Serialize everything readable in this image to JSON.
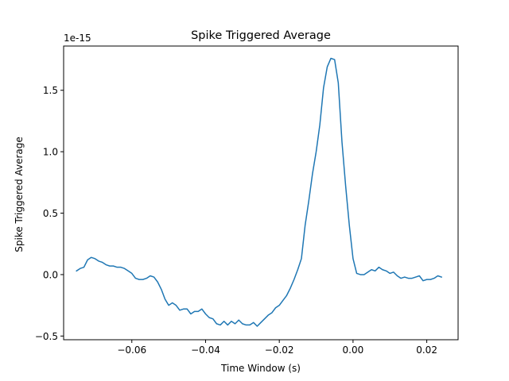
{
  "chart_data": {
    "type": "line",
    "title": "Spike Triggered Average",
    "xlabel": "Time Window (s)",
    "ylabel": "Spike Triggered Average",
    "y_offset_text": "1e-15",
    "y_scale_factor": 1e-15,
    "xlim": [
      -0.0785,
      0.0285
    ],
    "ylim": [
      -0.53,
      1.86
    ],
    "xticks": [
      -0.06,
      -0.04,
      -0.02,
      0.0,
      0.02
    ],
    "xtick_labels": [
      "−0.06",
      "−0.04",
      "−0.02",
      "0.00",
      "0.02"
    ],
    "yticks": [
      -0.5,
      0.0,
      0.5,
      1.0,
      1.5
    ],
    "ytick_labels": [
      "−0.5",
      "0.0",
      "0.5",
      "1.0",
      "1.5"
    ],
    "grid": false,
    "line_color": "#1f77b4",
    "series": [
      {
        "x": [
          -0.075,
          -0.074,
          -0.073,
          -0.072,
          -0.071,
          -0.07,
          -0.069,
          -0.068,
          -0.067,
          -0.066,
          -0.065,
          -0.064,
          -0.063,
          -0.062,
          -0.061,
          -0.06,
          -0.059,
          -0.058,
          -0.057,
          -0.056,
          -0.055,
          -0.054,
          -0.053,
          -0.052,
          -0.051,
          -0.05,
          -0.049,
          -0.048,
          -0.047,
          -0.046,
          -0.045,
          -0.044,
          -0.043,
          -0.042,
          -0.041,
          -0.04,
          -0.039,
          -0.038,
          -0.037,
          -0.036,
          -0.035,
          -0.034,
          -0.033,
          -0.032,
          -0.031,
          -0.03,
          -0.029,
          -0.028,
          -0.027,
          -0.026,
          -0.025,
          -0.024,
          -0.023,
          -0.022,
          -0.021,
          -0.02,
          -0.019,
          -0.018,
          -0.017,
          -0.016,
          -0.015,
          -0.014,
          -0.013,
          -0.012,
          -0.011,
          -0.01,
          -0.009,
          -0.008,
          -0.007,
          -0.006,
          -0.005,
          -0.004,
          -0.003,
          -0.002,
          -0.001,
          0.0,
          0.001,
          0.002,
          0.003,
          0.004,
          0.005,
          0.006,
          0.007,
          0.008,
          0.009,
          0.01,
          0.011,
          0.012,
          0.013,
          0.014,
          0.015,
          0.016,
          0.017,
          0.018,
          0.019,
          0.02,
          0.021,
          0.022,
          0.023,
          0.024
        ],
        "values": [
          0.03,
          0.05,
          0.06,
          0.12,
          0.14,
          0.13,
          0.11,
          0.1,
          0.08,
          0.07,
          0.07,
          0.06,
          0.06,
          0.05,
          0.03,
          0.01,
          -0.03,
          -0.04,
          -0.04,
          -0.03,
          -0.01,
          -0.02,
          -0.06,
          -0.12,
          -0.2,
          -0.25,
          -0.23,
          -0.25,
          -0.29,
          -0.28,
          -0.28,
          -0.32,
          -0.3,
          -0.3,
          -0.28,
          -0.32,
          -0.35,
          -0.36,
          -0.4,
          -0.41,
          -0.38,
          -0.41,
          -0.38,
          -0.4,
          -0.37,
          -0.4,
          -0.41,
          -0.41,
          -0.39,
          -0.42,
          -0.39,
          -0.36,
          -0.33,
          -0.31,
          -0.27,
          -0.25,
          -0.21,
          -0.17,
          -0.11,
          -0.04,
          0.04,
          0.13,
          0.4,
          0.6,
          0.82,
          1.0,
          1.22,
          1.52,
          1.69,
          1.76,
          1.75,
          1.56,
          1.08,
          0.72,
          0.4,
          0.13,
          0.01,
          0.0,
          0.0,
          0.02,
          0.04,
          0.03,
          0.06,
          0.04,
          0.03,
          0.01,
          0.02,
          -0.01,
          -0.03,
          -0.02,
          -0.03,
          -0.03,
          -0.02,
          -0.01,
          -0.05,
          -0.04,
          -0.04,
          -0.03,
          -0.01,
          -0.02
        ]
      }
    ]
  }
}
